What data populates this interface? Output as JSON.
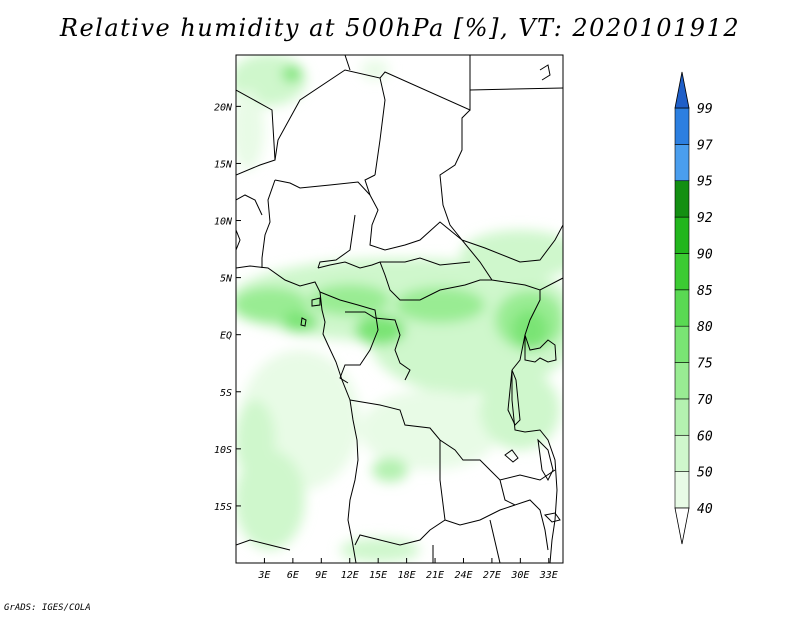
{
  "title": "Relative humidity at 500hPa [%], VT: 2020101912",
  "credit": "GrADS: IGES/COLA",
  "map": {
    "lat_range": [
      -20,
      24.5
    ],
    "lon_range": [
      0,
      34.5
    ],
    "lat_ticks": [
      {
        "value": 20,
        "label": "20N"
      },
      {
        "value": 15,
        "label": "15N"
      },
      {
        "value": 10,
        "label": "10N"
      },
      {
        "value": 5,
        "label": "5N"
      },
      {
        "value": 0,
        "label": "EQ"
      },
      {
        "value": -5,
        "label": "5S"
      },
      {
        "value": -10,
        "label": "10S"
      },
      {
        "value": -15,
        "label": "15S"
      }
    ],
    "lon_ticks": [
      {
        "value": 3,
        "label": "3E"
      },
      {
        "value": 6,
        "label": "6E"
      },
      {
        "value": 9,
        "label": "9E"
      },
      {
        "value": 12,
        "label": "12E"
      },
      {
        "value": 15,
        "label": "15E"
      },
      {
        "value": 18,
        "label": "18E"
      },
      {
        "value": 21,
        "label": "21E"
      },
      {
        "value": 24,
        "label": "24E"
      },
      {
        "value": 27,
        "label": "27E"
      },
      {
        "value": 30,
        "label": "30E"
      },
      {
        "value": 33,
        "label": "33E"
      }
    ]
  },
  "colorbar": {
    "levels": [
      "40",
      "50",
      "60",
      "70",
      "75",
      "80",
      "85",
      "90",
      "92",
      "95",
      "97",
      "99"
    ],
    "colors": [
      "#ffffff",
      "#e8fbe6",
      "#cff7cc",
      "#b4f1b0",
      "#99ec93",
      "#7ae474",
      "#5ad953",
      "#3ccb33",
      "#22b61d",
      "#138f12",
      "#4a9eee",
      "#2c7fe0",
      "#1f5fc8"
    ]
  }
}
